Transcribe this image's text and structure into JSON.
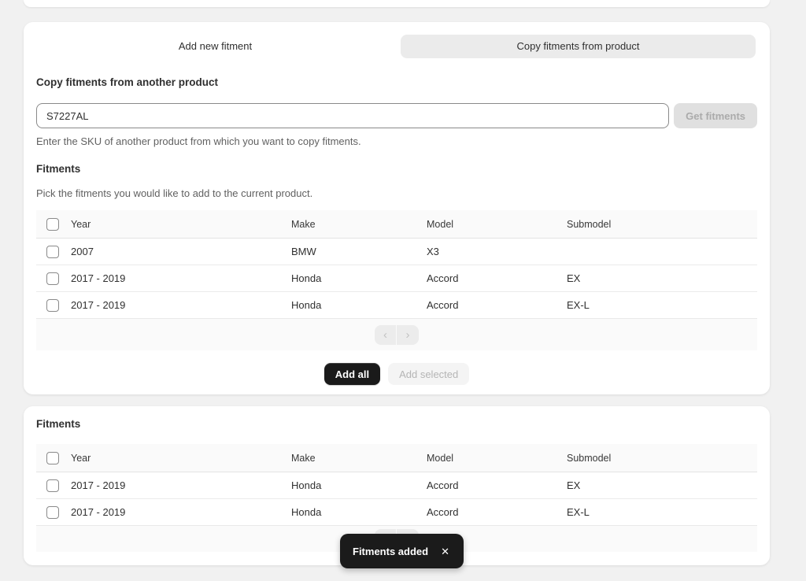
{
  "colors": {
    "page_bg": "#f1f1f1",
    "card_bg": "#ffffff",
    "selected_tab_bg": "#ebebeb",
    "primary_button_bg": "#1a1a1a",
    "toast_bg": "#1b1b1b"
  },
  "tabs": {
    "add_new_label": "Add new fitment",
    "copy_label": "Copy fitments from product"
  },
  "copy_section": {
    "title": "Copy fitments from another product",
    "sku_value": "S7227AL",
    "get_fitments_label": "Get fitments",
    "help": "Enter the SKU of another product from which you want to copy fitments."
  },
  "source_fitments": {
    "title": "Fitments",
    "description": "Pick the fitments you would like to add to the current product.",
    "columns": [
      "Year",
      "Make",
      "Model",
      "Submodel"
    ],
    "rows": [
      {
        "year": "2007",
        "make": "BMW",
        "model": "X3",
        "submodel": ""
      },
      {
        "year": "2017 - 2019",
        "make": "Honda",
        "model": "Accord",
        "submodel": "EX"
      },
      {
        "year": "2017 - 2019",
        "make": "Honda",
        "model": "Accord",
        "submodel": "EX-L"
      }
    ],
    "pagination": {
      "prev_icon": "‹",
      "next_icon": "›"
    },
    "add_all_label": "Add all",
    "add_selected_label": "Add selected"
  },
  "current_fitments": {
    "title": "Fitments",
    "columns": [
      "Year",
      "Make",
      "Model",
      "Submodel"
    ],
    "rows": [
      {
        "year": "2017 - 2019",
        "make": "Honda",
        "model": "Accord",
        "submodel": "EX"
      },
      {
        "year": "2017 - 2019",
        "make": "Honda",
        "model": "Accord",
        "submodel": "EX-L"
      }
    ],
    "pagination": {
      "prev_icon": "‹",
      "next_icon": "›"
    }
  },
  "toast": {
    "message": "Fitments added",
    "close_icon": "✕"
  }
}
